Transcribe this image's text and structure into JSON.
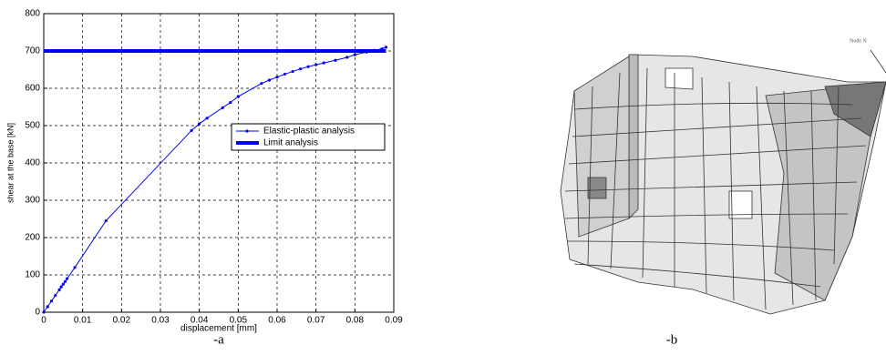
{
  "chart_data": {
    "type": "line",
    "x_label": "displacement [mm]",
    "y_label": "shear at the base [kN]",
    "xlim": [
      0,
      0.09
    ],
    "xticks": [
      0,
      0.01,
      0.02,
      0.03,
      0.04,
      0.05,
      0.06,
      0.07,
      0.08,
      0.09
    ],
    "ylim": [
      0,
      800
    ],
    "yticks": [
      0,
      100,
      200,
      300,
      400,
      500,
      600,
      700,
      800
    ],
    "grid": true,
    "legend": "right",
    "series": [
      {
        "name": "Elastic-plastic analysis",
        "color": "#0000ff",
        "line_width": 1,
        "markers": true,
        "x": [
          0,
          0.001,
          0.002,
          0.003,
          0.004,
          0.0045,
          0.005,
          0.0055,
          0.006,
          0.008,
          0.016,
          0.038,
          0.04,
          0.042,
          0.046,
          0.048,
          0.05,
          0.056,
          0.058,
          0.06,
          0.062,
          0.064,
          0.066,
          0.068,
          0.07,
          0.072,
          0.075,
          0.078,
          0.08,
          0.083,
          0.085,
          0.087,
          0.088
        ],
        "values": [
          0,
          15,
          30,
          45,
          60,
          68,
          75,
          82,
          90,
          120,
          245,
          487,
          505,
          520,
          548,
          562,
          578,
          613,
          622,
          630,
          638,
          645,
          652,
          658,
          663,
          668,
          675,
          683,
          690,
          697,
          702,
          706,
          710
        ]
      },
      {
        "name": "Limit analysis",
        "color": "#0000ff",
        "line_width": 4,
        "markers": false,
        "x": [
          0,
          0.088
        ],
        "values": [
          700,
          700
        ]
      }
    ]
  },
  "captions": [
    "-a",
    "-b"
  ],
  "figure_b": {
    "label": "Node N"
  }
}
